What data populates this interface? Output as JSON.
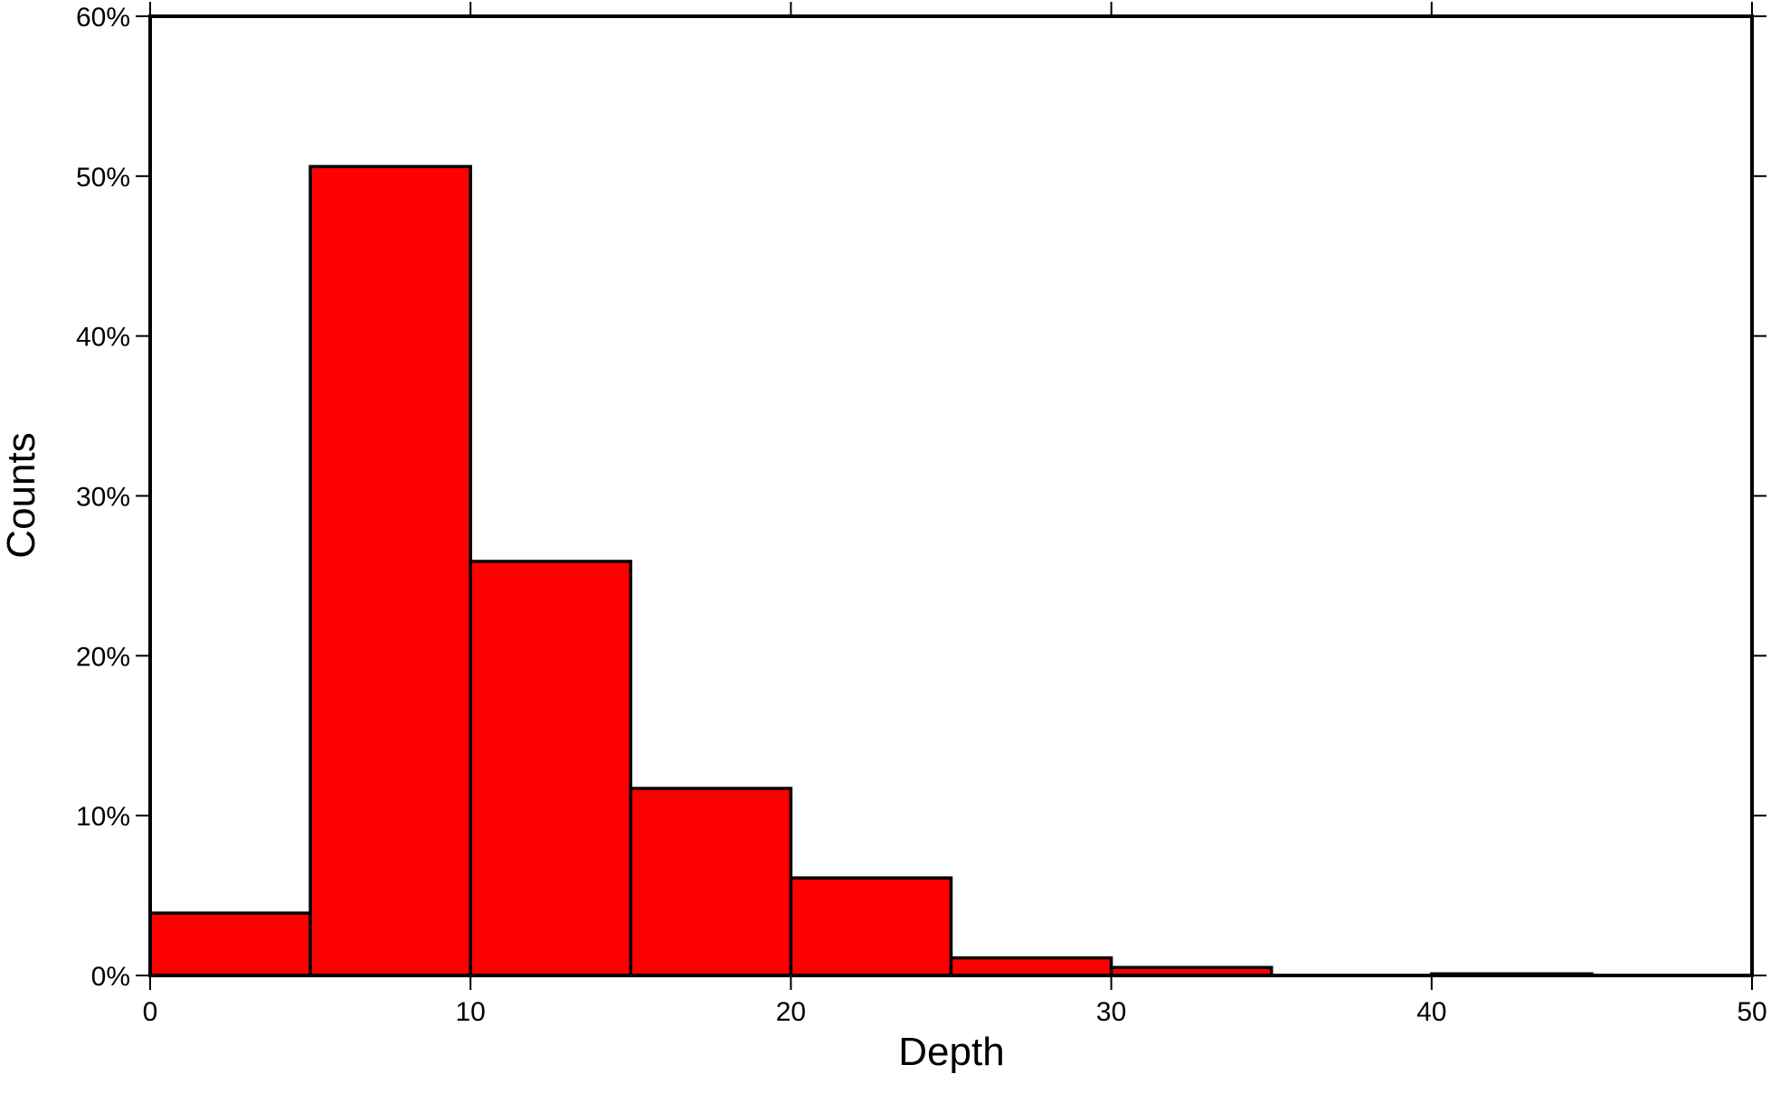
{
  "chart_data": {
    "type": "histogram",
    "x_label": "Depth",
    "y_label": "Counts",
    "bins": [
      0,
      5,
      10,
      15,
      20,
      25,
      30,
      35,
      40,
      45
    ],
    "counts": [
      3.9,
      50.6,
      25.9,
      11.7,
      6.1,
      1.1,
      0.5,
      0,
      0.1
    ],
    "color": "#ff0000",
    "xlim": [
      0,
      50
    ],
    "xticks": [
      0,
      10,
      20,
      30,
      40,
      50
    ],
    "ylim": [
      0,
      60
    ],
    "yticks": [
      {
        "value": 0,
        "label": "0%"
      },
      {
        "value": 10,
        "label": "10%"
      },
      {
        "value": 20,
        "label": "20%"
      },
      {
        "value": 30,
        "label": "30%"
      },
      {
        "value": 40,
        "label": "40%"
      },
      {
        "value": 50,
        "label": "50%"
      },
      {
        "value": 60,
        "label": "60%"
      }
    ],
    "grid": false
  }
}
